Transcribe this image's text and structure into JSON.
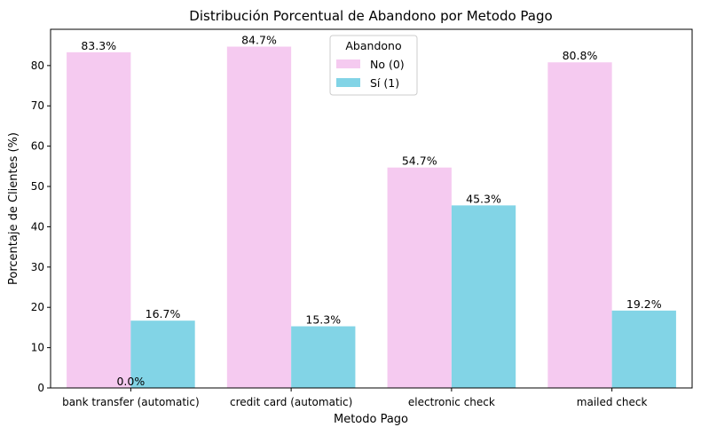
{
  "chart_data": {
    "type": "bar",
    "title": "Distribución Porcentual de Abandono por Metodo Pago",
    "xlabel": "Metodo Pago",
    "ylabel": "Porcentaje de Clientes (%)",
    "categories": [
      "bank transfer (automatic)",
      "credit card (automatic)",
      "electronic check",
      "mailed check"
    ],
    "ylim": [
      0,
      89
    ],
    "yticks": [
      0,
      10,
      20,
      30,
      40,
      50,
      60,
      70,
      80
    ],
    "grid": false,
    "legend": {
      "title": "Abandono",
      "placement": "upper-center"
    },
    "series": [
      {
        "name": "No (0)",
        "color": "#f5caf0",
        "values": [
          83.3,
          84.7,
          54.7,
          80.8
        ],
        "labels": [
          "83.3%",
          "84.7%",
          "54.7%",
          "80.8%"
        ]
      },
      {
        "name": "Sí (1)",
        "color": "#82d4e6",
        "values": [
          16.7,
          15.3,
          45.3,
          19.2
        ],
        "labels": [
          "16.7%",
          "15.3%",
          "45.3%",
          "19.2%"
        ]
      }
    ],
    "annotations": [
      {
        "text": "0.0%",
        "category": "bank transfer (automatic)",
        "value": 0
      }
    ]
  }
}
